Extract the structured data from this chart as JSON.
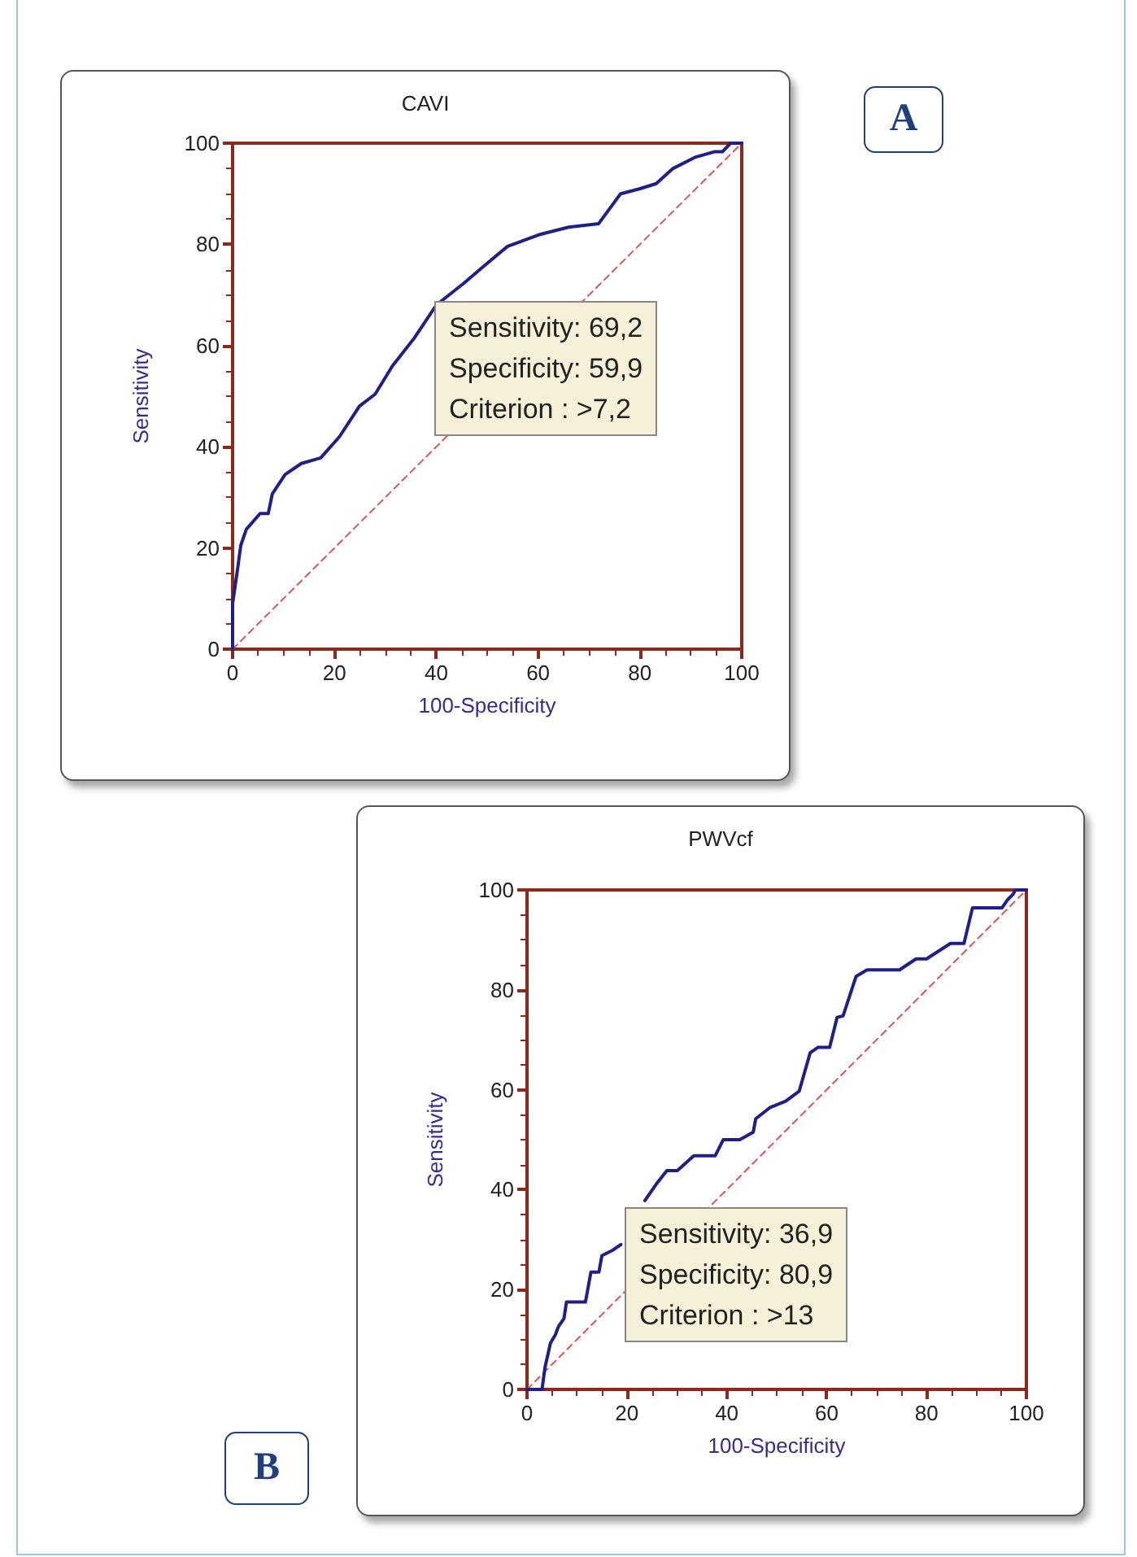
{
  "chart_data": [
    {
      "type": "line",
      "title": "CAVI",
      "xlabel": "100-Specificity",
      "ylabel": "Sensitivity",
      "xlim": [
        0,
        100
      ],
      "ylim": [
        0,
        100
      ],
      "xticks": [
        0,
        20,
        40,
        60,
        80,
        100
      ],
      "yticks": [
        0,
        20,
        40,
        60,
        80,
        100
      ],
      "grid": false,
      "marker": "none",
      "annotations": [
        "A",
        "Sensitivity: 69,2\nSpecificity: 59,9\nCriterion : >7,2"
      ],
      "series": [
        {
          "color": "#1f1f8c",
          "line_style": "solid",
          "x": [
            0,
            0,
            1,
            1.6,
            2.7,
            5.4,
            7,
            7.8,
            10.3,
            13.5,
            17.3,
            21,
            24.9,
            28,
            31.4,
            35.7,
            40,
            45.4,
            49.7,
            54,
            60.5,
            66,
            71.9,
            76.2,
            80,
            83.2,
            86.5,
            90.8,
            94.6,
            96.2,
            97.8,
            100
          ],
          "values": [
            0,
            9,
            16,
            20.5,
            23.7,
            26.8,
            26.8,
            30.7,
            34.5,
            36.7,
            37.8,
            42,
            48,
            50.4,
            56,
            61.5,
            68,
            72.3,
            76,
            79.6,
            82,
            83.4,
            84.1,
            90,
            91,
            92,
            95,
            97.2,
            98.3,
            98.3,
            100,
            100
          ]
        },
        {
          "color": "#d45a5a",
          "line_style": "dashed",
          "x": [
            0,
            100
          ],
          "values": [
            0,
            100
          ]
        }
      ]
    },
    {
      "type": "line",
      "title": "PWVcf",
      "xlabel": "100-Specificity",
      "ylabel": "Sensitivity",
      "xlim": [
        0,
        100
      ],
      "ylim": [
        0,
        100
      ],
      "xticks": [
        0,
        20,
        40,
        60,
        80,
        100
      ],
      "yticks": [
        0,
        20,
        40,
        60,
        80,
        100
      ],
      "grid": false,
      "marker": "none",
      "annotations": [
        "B",
        "Sensitivity: 36,9\nSpecificity: 80,9\nCriterion : >13"
      ],
      "series": [
        {
          "color": "#1f1f8c",
          "line_style": "solid",
          "x": [
            0,
            3,
            3.6,
            4.7,
            5.7,
            6.3,
            7.4,
            7.9,
            11.7,
            12.8,
            14.4,
            15,
            17.2,
            18.8,
            19.9,
            22.5,
            23.6,
            25.8,
            28,
            30.1,
            33.4,
            37.7,
            39.3,
            42.6,
            45.3,
            45.8,
            48.6,
            51.8,
            54.5,
            56.7,
            58.3,
            60.6,
            62.1,
            63.3,
            65.9,
            68.1,
            74.6,
            77.9,
            80,
            84.8,
            87.5,
            89.2,
            95.1,
            96.2,
            97.3,
            97.8,
            100
          ],
          "values": [
            0,
            0,
            4.4,
            9.3,
            11,
            12.6,
            14.2,
            17.5,
            17.5,
            23.5,
            23.5,
            26.8,
            27.9,
            29,
            null,
            null,
            37.8,
            41,
            43.8,
            43.8,
            46.8,
            46.8,
            50,
            50,
            51.5,
            54.2,
            56.4,
            57.7,
            59.7,
            67.4,
            68.5,
            68.5,
            74.5,
            74.8,
            82.7,
            84,
            84,
            86.2,
            86.2,
            89.3,
            89.3,
            96.4,
            96.4,
            98,
            99.1,
            100,
            100
          ]
        },
        {
          "color": "#d45a5a",
          "line_style": "dashed",
          "x": [
            0,
            100
          ],
          "values": [
            0,
            100
          ]
        }
      ]
    }
  ]
}
